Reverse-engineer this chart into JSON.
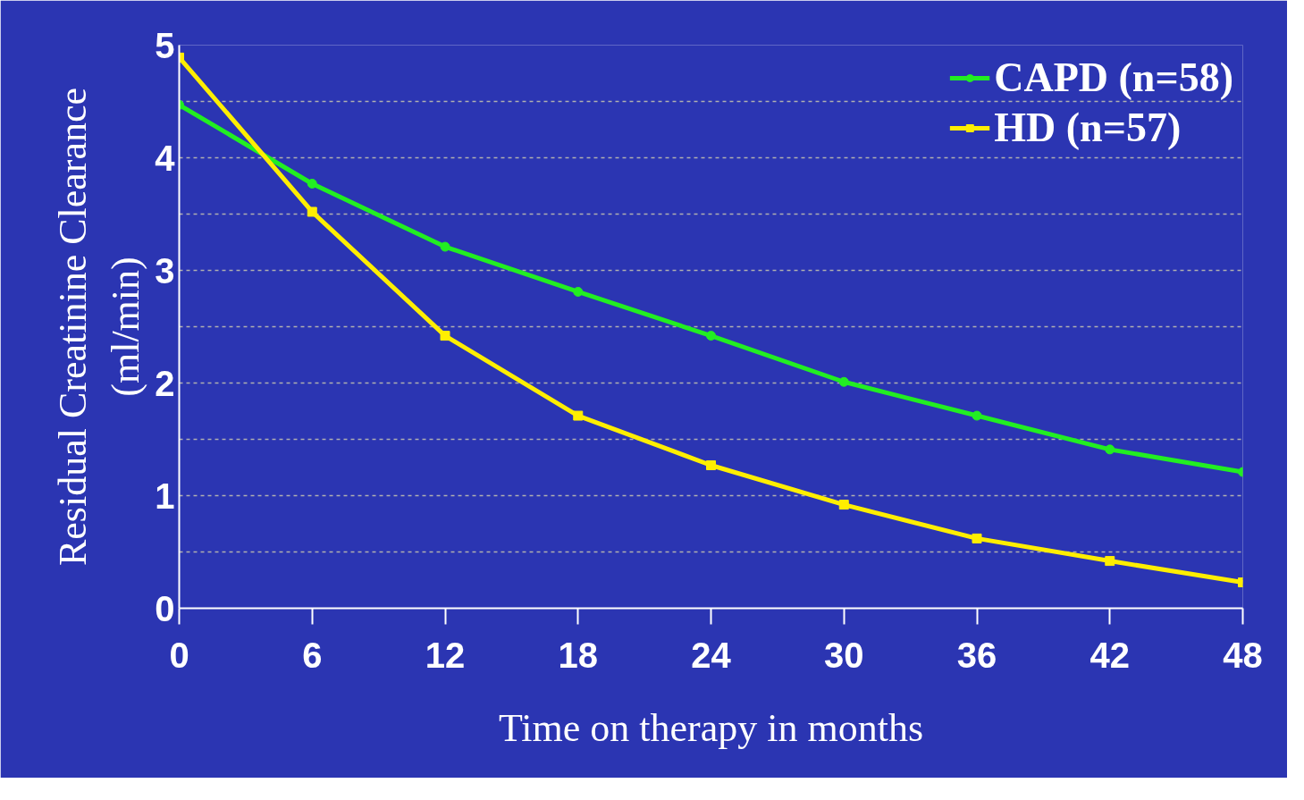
{
  "chart_data": {
    "type": "line",
    "xlabel": "Time on therapy in months",
    "ylabel": "Residual Creatinine Clearance\n(ml/min)",
    "x": [
      0,
      6,
      12,
      18,
      24,
      30,
      36,
      42,
      48
    ],
    "series": [
      {
        "name": "CAPD (n=58)",
        "color": "#22ee22",
        "marker": "circle",
        "values": [
          4.47,
          3.77,
          3.21,
          2.81,
          2.42,
          2.01,
          1.71,
          1.41,
          1.21
        ]
      },
      {
        "name": "HD (n=57)",
        "color": "#ffee00",
        "marker": "square",
        "values": [
          4.89,
          3.52,
          2.42,
          1.71,
          1.27,
          0.92,
          0.62,
          0.42,
          0.23
        ]
      }
    ],
    "xlim": [
      0,
      48
    ],
    "ylim": [
      0,
      5
    ],
    "xticks": [
      0,
      6,
      12,
      18,
      24,
      30,
      36,
      42,
      48
    ],
    "yticks": [
      0,
      {
        "value": 0.5,
        "label": null
      },
      1,
      {
        "value": 1.5,
        "label": null
      },
      2,
      {
        "value": 2.5,
        "label": null
      },
      3,
      {
        "value": 3.5,
        "label": null
      },
      4,
      {
        "value": 4.5,
        "label": null
      },
      5
    ],
    "grid": "y",
    "legend": "top right",
    "line_style": "solid"
  }
}
